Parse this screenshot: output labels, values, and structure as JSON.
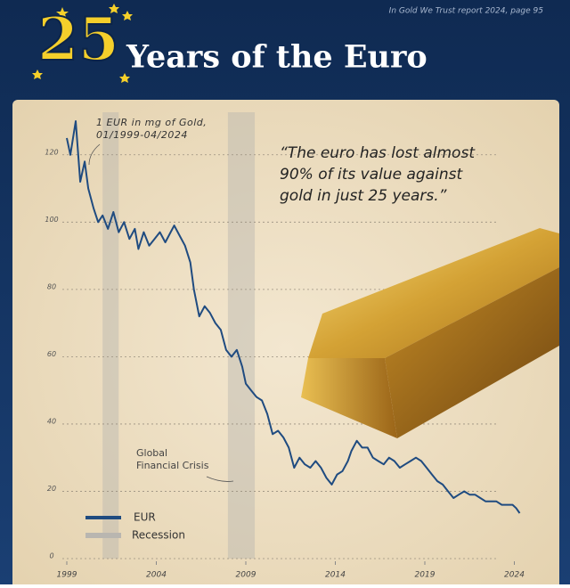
{
  "chart_data": {
    "type": "line",
    "badge": "25",
    "title": "Years of the Euro",
    "source": "In Gold We Trust report 2024, page 95",
    "series_note": [
      "1 EUR in mg of Gold,",
      "01/1999-04/2024"
    ],
    "quote": [
      "“The euro has lost almost",
      "90% of its value against",
      "gold in just 25 years.”"
    ],
    "annotation": [
      "Global",
      "Financial Crisis"
    ],
    "x": [
      1999.0,
      1999.2,
      1999.5,
      1999.75,
      2000.0,
      2000.2,
      2000.5,
      2000.75,
      2001.0,
      2001.3,
      2001.6,
      2001.9,
      2002.2,
      2002.5,
      2002.8,
      2003.0,
      2003.3,
      2003.6,
      2003.9,
      2004.2,
      2004.5,
      2004.8,
      2005.0,
      2005.3,
      2005.6,
      2005.9,
      2006.1,
      2006.4,
      2006.7,
      2007.0,
      2007.3,
      2007.6,
      2007.9,
      2008.2,
      2008.5,
      2008.8,
      2009.0,
      2009.3,
      2009.6,
      2009.9,
      2010.2,
      2010.5,
      2010.8,
      2011.1,
      2011.4,
      2011.7,
      2012.0,
      2012.3,
      2012.6,
      2012.9,
      2013.2,
      2013.5,
      2013.8,
      2014.1,
      2014.4,
      2014.7,
      2014.9,
      2015.2,
      2015.5,
      2015.8,
      2016.1,
      2016.4,
      2016.7,
      2017.0,
      2017.3,
      2017.6,
      2017.9,
      2018.2,
      2018.5,
      2018.8,
      2019.1,
      2019.4,
      2019.7,
      2020.0,
      2020.3,
      2020.6,
      2020.9,
      2021.2,
      2021.5,
      2021.8,
      2022.1,
      2022.4,
      2022.7,
      2023.0,
      2023.3,
      2023.6,
      2023.9,
      2024.1,
      2024.3
    ],
    "series": [
      {
        "name": "EUR",
        "color": "#1f4b80",
        "values": [
          125,
          120,
          130,
          112,
          118,
          110,
          104,
          100,
          102,
          98,
          103,
          97,
          100,
          95,
          98,
          92,
          97,
          93,
          95,
          97,
          94,
          97,
          99,
          96,
          93,
          88,
          80,
          72,
          75,
          73,
          70,
          68,
          62,
          60,
          62,
          57,
          52,
          50,
          48,
          47,
          43,
          37,
          38,
          36,
          33,
          27,
          30,
          28,
          27,
          29,
          27,
          24,
          22,
          25,
          26,
          29,
          32,
          35,
          33,
          33,
          30,
          29,
          28,
          30,
          29,
          27,
          28,
          29,
          30,
          29,
          27,
          25,
          23,
          22,
          20,
          18,
          19,
          20,
          19,
          19,
          18,
          17,
          17,
          17,
          16,
          16,
          16,
          15,
          13.5
        ]
      }
    ],
    "recession_label": "Recession",
    "recession_color": "#b9b6b0",
    "recessions": [
      [
        2001.0,
        2001.9
      ],
      [
        2008.0,
        2009.5
      ]
    ],
    "xlim": [
      1999,
      2025
    ],
    "xticks": [
      1999,
      2004,
      2009,
      2014,
      2019,
      2024
    ],
    "ylim": [
      0,
      130
    ],
    "yticks": [
      0,
      20,
      40,
      60,
      80,
      100,
      120
    ],
    "grid": true
  }
}
